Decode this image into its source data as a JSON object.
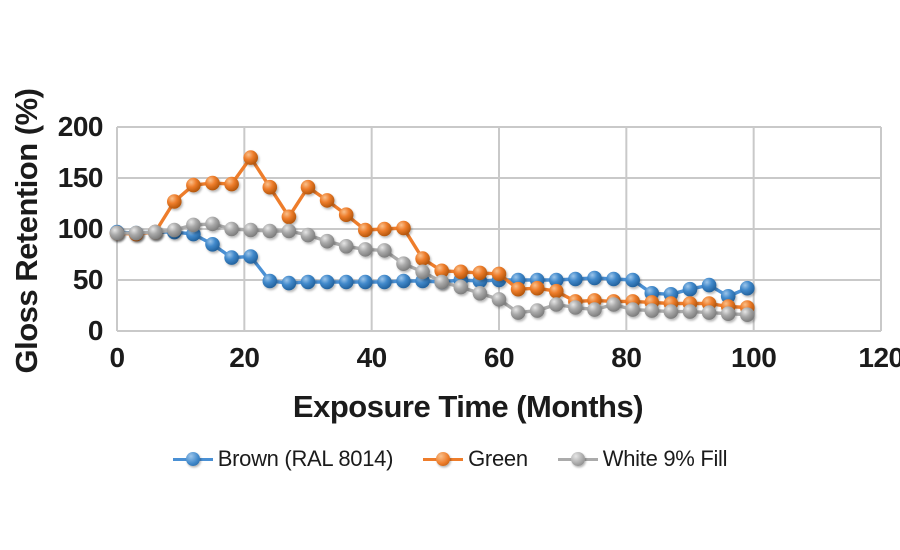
{
  "chart_data": {
    "type": "line",
    "title": "",
    "xlabel": "Exposure Time (Months)",
    "ylabel": "Gloss Retention (%)",
    "xlim": [
      0,
      120
    ],
    "ylim": [
      0,
      200
    ],
    "x_ticks": [
      0,
      20,
      40,
      60,
      80,
      100,
      120
    ],
    "y_ticks": [
      0,
      50,
      100,
      150,
      200
    ],
    "grid": true,
    "legend_position": "bottom",
    "x": [
      0,
      3,
      6,
      9,
      12,
      15,
      18,
      21,
      24,
      27,
      30,
      33,
      36,
      39,
      42,
      45,
      48,
      51,
      54,
      57,
      60,
      63,
      66,
      69,
      72,
      75,
      78,
      81,
      84,
      87,
      90,
      93,
      96,
      99
    ],
    "series": [
      {
        "name": "Brown (RAL 8014)",
        "values": [
          97,
          96,
          97,
          97,
          95,
          85,
          72,
          73,
          49,
          47,
          48,
          48,
          48,
          48,
          48,
          49,
          49,
          48,
          50,
          49,
          50,
          50,
          50,
          50,
          51,
          52,
          51,
          50,
          37,
          36,
          41,
          45,
          34,
          42
        ],
        "color": {
          "line": "#4a90d4",
          "light": "#9cc5ea",
          "mid": "#4189cb",
          "dark": "#1f5e99"
        }
      },
      {
        "name": "Green",
        "values": [
          96,
          95,
          97,
          127,
          143,
          145,
          144,
          170,
          141,
          112,
          141,
          128,
          114,
          99,
          100,
          101,
          71,
          59,
          58,
          57,
          56,
          41,
          42,
          39,
          29,
          30,
          29,
          29,
          28,
          27,
          27,
          27,
          24,
          23
        ],
        "color": {
          "line": "#ee7d2b",
          "light": "#f9c08c",
          "mid": "#ee7d2b",
          "dark": "#ae5208"
        }
      },
      {
        "name": "White 9% Fill",
        "values": [
          96,
          96,
          97,
          99,
          104,
          105,
          100,
          99,
          98,
          98,
          94,
          88,
          83,
          80,
          79,
          66,
          58,
          48,
          43,
          37,
          31,
          18,
          20,
          26,
          23,
          21,
          26,
          21,
          20,
          19,
          19,
          18,
          17,
          16
        ],
        "color": {
          "line": "#ababab",
          "light": "#e6e6e6",
          "mid": "#a9a9a9",
          "dark": "#787878"
        }
      }
    ],
    "style": {
      "gridline_color": "#c9c9c9",
      "text_color": "#1b1b1b",
      "background": "#ffffff"
    }
  }
}
